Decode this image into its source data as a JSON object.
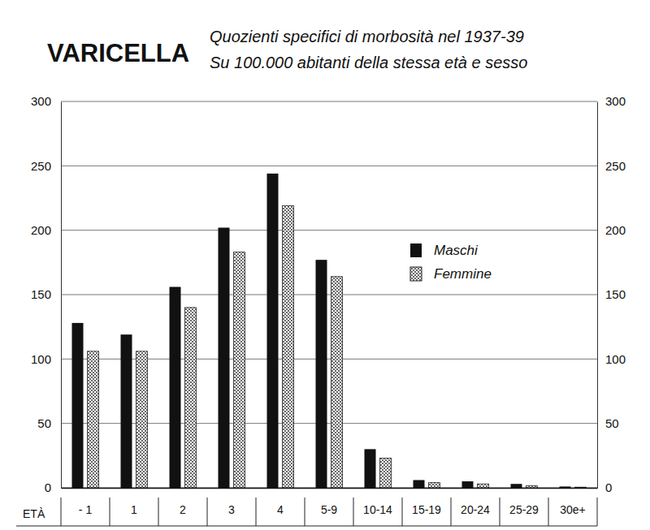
{
  "chart_data": {
    "type": "bar",
    "title": "VARICELLA",
    "subtitle": [
      "Quozienti specifici di morbosità nel 1937-39",
      "Su 100.000 abitanti della stessa età e sesso"
    ],
    "x_label": "ETÀ",
    "categories": [
      "- 1",
      "1",
      "2",
      "3",
      "4",
      "5-9",
      "10-14",
      "15-19",
      "20-24",
      "25-29",
      "30e+"
    ],
    "series": [
      {
        "name": "Maschi",
        "color": "#111111",
        "values": [
          128,
          119,
          156,
          202,
          244,
          177,
          30,
          6,
          5,
          3,
          1
        ]
      },
      {
        "name": "Femmine",
        "color": "#222222",
        "values": [
          106,
          106,
          140,
          183,
          219,
          164,
          23,
          4,
          3,
          1.5,
          0.5
        ]
      }
    ],
    "ylim": [
      0,
      300
    ],
    "yticks": [
      0,
      50,
      100,
      150,
      200,
      250,
      300
    ],
    "grid": true,
    "legend": "right"
  }
}
